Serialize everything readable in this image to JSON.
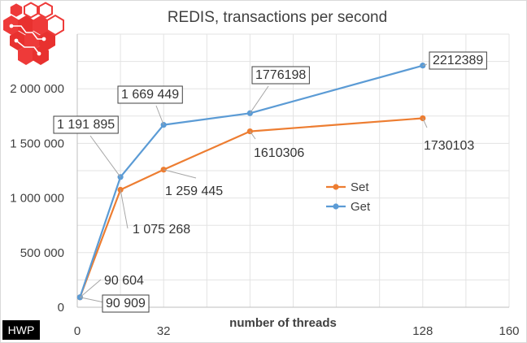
{
  "chart_data": {
    "type": "line",
    "title": "REDIS, transactions per second",
    "xlabel": "number of threads",
    "ylabel": "",
    "xlim": [
      0,
      160
    ],
    "ylim": [
      0,
      2500000
    ],
    "x_ticks": [
      {
        "value": 0,
        "label": "0"
      },
      {
        "value": 32,
        "label": "32"
      },
      {
        "value": 128,
        "label": "128"
      },
      {
        "value": 160,
        "label": "160"
      }
    ],
    "y_ticks": [
      {
        "value": 0,
        "label": "0"
      },
      {
        "value": 500000,
        "label": "500 000"
      },
      {
        "value": 1000000,
        "label": "1 000 000"
      },
      {
        "value": 1500000,
        "label": "1 500 000"
      },
      {
        "value": 2000000,
        "label": "2 000 000"
      }
    ],
    "grid": true,
    "legend_position": "right",
    "series": [
      {
        "name": "Set",
        "color": "#ed7d31",
        "x": [
          1,
          16,
          32,
          64,
          128
        ],
        "y": [
          90604,
          1075268,
          1259445,
          1610306,
          1730103
        ],
        "labels": [
          "90 604",
          "1 075 268",
          "1 259 445",
          "1610306",
          "1730103"
        ],
        "boxed": false
      },
      {
        "name": "Get",
        "color": "#5b9bd5",
        "x": [
          1,
          16,
          32,
          64,
          128
        ],
        "y": [
          90909,
          1191895,
          1669449,
          1776198,
          2212389
        ],
        "labels": [
          "90 909",
          "1 191 895",
          "1 669 449",
          "1776198",
          "2212389"
        ],
        "boxed": true
      }
    ]
  },
  "logo": {
    "icon": "hexagon-circuit-logo",
    "color": "#e8312f"
  },
  "corner_label": "HWP"
}
